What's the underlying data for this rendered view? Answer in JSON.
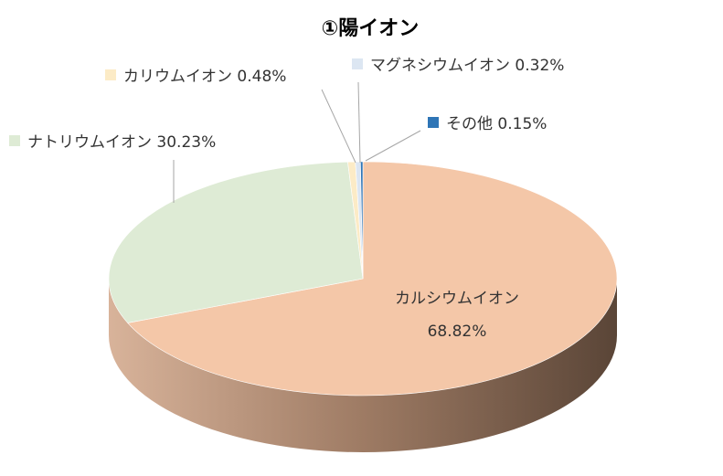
{
  "chart_data": {
    "type": "pie",
    "title": "①陽イオン",
    "slices": [
      {
        "label": "カルシウムイオン",
        "value": 68.82,
        "value_label": "68.82%",
        "color": "#F4C7A8"
      },
      {
        "label": "ナトリウムイオン",
        "value": 30.23,
        "value_label": "30.23%",
        "color": "#DEEBD5"
      },
      {
        "label": "カリウムイオン",
        "value": 0.48,
        "value_label": "0.48%",
        "color": "#FCEBC6"
      },
      {
        "label": "マグネシウムイオン",
        "value": 0.32,
        "value_label": "0.32%",
        "color": "#DCE6F2"
      },
      {
        "label": "その他",
        "value": 0.15,
        "value_label": "0.15%",
        "color": "#2E75B6"
      }
    ],
    "legend": "none",
    "style": "3d-pie"
  }
}
